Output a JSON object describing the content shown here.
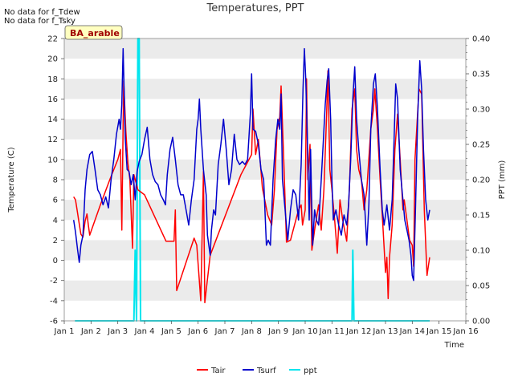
{
  "notes": [
    "No data for f_Tdew",
    "No data for f_Tsky"
  ],
  "badge": "BA_arable",
  "chart_data": {
    "type": "line",
    "title": "Temperatures, PPT",
    "xlabel": "Time",
    "ylabel": "Temperature (C)",
    "y2label": "PPT (mm)",
    "xlim": [
      1,
      16
    ],
    "ylim": [
      -6,
      22
    ],
    "y2lim": [
      0.0,
      0.4
    ],
    "x_tick_labels": [
      "Jan 1",
      "Jan 2",
      "Jan 3",
      "Jan 4",
      "Jan 5",
      "Jan 6",
      "Jan 7",
      "Jan 8",
      "Jan 9",
      "Jan 10",
      "Jan 11",
      "Jan 12",
      "Jan 13",
      "Jan 14",
      "Jan 15",
      "Jan 16"
    ],
    "y_ticks": [
      -6,
      -4,
      -2,
      0,
      2,
      4,
      6,
      8,
      10,
      12,
      14,
      16,
      18,
      20,
      22
    ],
    "y2_ticks": [
      "0.00",
      "0.05",
      "0.10",
      "0.15",
      "0.20",
      "0.25",
      "0.30",
      "0.35",
      "0.40"
    ],
    "grid": "horizontal bands",
    "legend_position": "bottom-center",
    "colors": {
      "Tair": "#ff0000",
      "Tsurf": "#0000cc",
      "ppt": "#00e5ee",
      "band": "#ebebeb"
    },
    "series": [
      {
        "name": "Tair",
        "axis": "left",
        "points": [
          [
            1.35,
            6.3
          ],
          [
            1.42,
            6.0
          ],
          [
            1.48,
            5.0
          ],
          [
            1.55,
            3.8
          ],
          [
            1.62,
            2.6
          ],
          [
            1.7,
            2.3
          ],
          [
            1.78,
            3.9
          ],
          [
            1.85,
            4.6
          ],
          [
            1.9,
            3.5
          ],
          [
            1.95,
            2.5
          ],
          [
            2.35,
            5.5
          ],
          [
            2.7,
            8.0
          ],
          [
            3.0,
            10.0
          ],
          [
            3.1,
            11.0
          ],
          [
            3.15,
            3.0
          ],
          [
            3.22,
            17.8
          ],
          [
            3.3,
            12.8
          ],
          [
            3.38,
            9.6
          ],
          [
            3.45,
            8.0
          ],
          [
            3.55,
            1.2
          ],
          [
            3.6,
            8.5
          ],
          [
            3.75,
            7.0
          ],
          [
            4.0,
            6.5
          ],
          [
            4.8,
            1.9
          ],
          [
            5.1,
            1.9
          ],
          [
            5.15,
            5.0
          ],
          [
            5.2,
            -3.0
          ],
          [
            5.85,
            2.2
          ],
          [
            5.95,
            1.5
          ],
          [
            6.1,
            -4.0
          ],
          [
            6.2,
            8.8
          ],
          [
            6.25,
            -4.2
          ],
          [
            6.45,
            0.5
          ],
          [
            7.6,
            8.5
          ],
          [
            7.8,
            9.5
          ],
          [
            8.0,
            10.5
          ],
          [
            8.05,
            15.0
          ],
          [
            8.15,
            10.5
          ],
          [
            8.25,
            12.0
          ],
          [
            8.4,
            7.2
          ],
          [
            8.6,
            4.5
          ],
          [
            8.75,
            3.5
          ],
          [
            8.85,
            7.0
          ],
          [
            8.95,
            13.0
          ],
          [
            9.05,
            14.2
          ],
          [
            9.1,
            17.3
          ],
          [
            9.2,
            10.0
          ],
          [
            9.3,
            1.8
          ],
          [
            9.45,
            2.0
          ],
          [
            9.6,
            3.5
          ],
          [
            9.75,
            5.0
          ],
          [
            9.85,
            5.5
          ],
          [
            9.9,
            3.5
          ],
          [
            10.0,
            5.0
          ],
          [
            10.05,
            18.0
          ],
          [
            10.1,
            8.0
          ],
          [
            10.18,
            11.5
          ],
          [
            10.25,
            1.0
          ],
          [
            10.35,
            3.0
          ],
          [
            10.5,
            5.5
          ],
          [
            10.6,
            3.0
          ],
          [
            10.7,
            7.0
          ],
          [
            10.8,
            14.5
          ],
          [
            10.85,
            18.8
          ],
          [
            10.92,
            9.0
          ],
          [
            11.0,
            7.0
          ],
          [
            11.1,
            4.0
          ],
          [
            11.2,
            0.7
          ],
          [
            11.3,
            6.0
          ],
          [
            11.4,
            4.0
          ],
          [
            11.55,
            1.9
          ],
          [
            11.65,
            7.0
          ],
          [
            11.75,
            15.0
          ],
          [
            11.85,
            17.0
          ],
          [
            11.92,
            11.0
          ],
          [
            12.0,
            9.0
          ],
          [
            12.1,
            8.0
          ],
          [
            12.2,
            5.0
          ],
          [
            12.3,
            7.0
          ],
          [
            12.45,
            13.0
          ],
          [
            12.55,
            15.0
          ],
          [
            12.6,
            17.0
          ],
          [
            12.7,
            13.0
          ],
          [
            12.8,
            8.0
          ],
          [
            12.9,
            3.5
          ],
          [
            13.0,
            -1.2
          ],
          [
            13.05,
            0.3
          ],
          [
            13.1,
            -3.8
          ],
          [
            13.15,
            0.3
          ],
          [
            13.25,
            3.5
          ],
          [
            13.35,
            11.0
          ],
          [
            13.45,
            14.5
          ],
          [
            13.55,
            10.0
          ],
          [
            13.65,
            5.0
          ],
          [
            13.7,
            6.0
          ],
          [
            13.8,
            4.0
          ],
          [
            13.9,
            2.0
          ],
          [
            14.0,
            1.5
          ],
          [
            14.05,
            -0.6
          ],
          [
            14.1,
            10.0
          ],
          [
            14.25,
            17.0
          ],
          [
            14.35,
            16.5
          ],
          [
            14.45,
            5.0
          ],
          [
            14.55,
            -1.5
          ],
          [
            14.6,
            -0.6
          ],
          [
            14.65,
            0.3
          ]
        ]
      },
      {
        "name": "Tsurf",
        "axis": "left",
        "points": [
          [
            1.35,
            4.0
          ],
          [
            1.42,
            2.8
          ],
          [
            1.5,
            1.0
          ],
          [
            1.56,
            -0.2
          ],
          [
            1.62,
            1.5
          ],
          [
            1.7,
            2.5
          ],
          [
            1.78,
            7.0
          ],
          [
            1.85,
            9.0
          ],
          [
            1.95,
            10.5
          ],
          [
            2.05,
            10.8
          ],
          [
            2.15,
            9.0
          ],
          [
            2.25,
            7.0
          ],
          [
            2.35,
            6.5
          ],
          [
            2.45,
            5.5
          ],
          [
            2.55,
            6.3
          ],
          [
            2.65,
            5.2
          ],
          [
            2.75,
            8.0
          ],
          [
            2.85,
            10.0
          ],
          [
            2.95,
            12.5
          ],
          [
            3.05,
            14.0
          ],
          [
            3.1,
            13.0
          ],
          [
            3.15,
            15.5
          ],
          [
            3.2,
            21.0
          ],
          [
            3.28,
            12.0
          ],
          [
            3.35,
            9.0
          ],
          [
            3.42,
            8.8
          ],
          [
            3.5,
            7.5
          ],
          [
            3.58,
            8.5
          ],
          [
            3.65,
            6.0
          ],
          [
            3.72,
            8.8
          ],
          [
            3.8,
            9.8
          ],
          [
            3.9,
            10.5
          ],
          [
            4.0,
            12.0
          ],
          [
            4.1,
            13.2
          ],
          [
            4.2,
            10.0
          ],
          [
            4.3,
            8.5
          ],
          [
            4.4,
            7.8
          ],
          [
            4.5,
            7.5
          ],
          [
            4.6,
            6.5
          ],
          [
            4.7,
            6.0
          ],
          [
            4.78,
            5.5
          ],
          [
            4.85,
            8.5
          ],
          [
            4.95,
            11.0
          ],
          [
            5.05,
            12.2
          ],
          [
            5.15,
            10.0
          ],
          [
            5.25,
            7.5
          ],
          [
            5.35,
            6.5
          ],
          [
            5.45,
            6.5
          ],
          [
            5.55,
            5.0
          ],
          [
            5.65,
            3.5
          ],
          [
            5.75,
            6.0
          ],
          [
            5.85,
            8.0
          ],
          [
            5.95,
            13.0
          ],
          [
            6.0,
            14.0
          ],
          [
            6.05,
            16.0
          ],
          [
            6.1,
            13.0
          ],
          [
            6.2,
            9.0
          ],
          [
            6.3,
            6.5
          ],
          [
            6.35,
            2.5
          ],
          [
            6.45,
            0.5
          ],
          [
            6.5,
            3.0
          ],
          [
            6.58,
            5.0
          ],
          [
            6.65,
            4.5
          ],
          [
            6.75,
            9.5
          ],
          [
            6.85,
            11.5
          ],
          [
            6.95,
            14.0
          ],
          [
            7.05,
            11.0
          ],
          [
            7.15,
            7.5
          ],
          [
            7.25,
            9.0
          ],
          [
            7.35,
            12.5
          ],
          [
            7.45,
            10.0
          ],
          [
            7.55,
            9.5
          ],
          [
            7.65,
            9.8
          ],
          [
            7.75,
            9.5
          ],
          [
            7.85,
            10.0
          ],
          [
            7.95,
            14.5
          ],
          [
            8.0,
            18.5
          ],
          [
            8.05,
            13.0
          ],
          [
            8.15,
            12.8
          ],
          [
            8.25,
            11.5
          ],
          [
            8.35,
            9.0
          ],
          [
            8.45,
            8.0
          ],
          [
            8.55,
            1.5
          ],
          [
            8.62,
            2.0
          ],
          [
            8.7,
            1.5
          ],
          [
            8.8,
            8.0
          ],
          [
            8.9,
            12.0
          ],
          [
            8.98,
            14.0
          ],
          [
            9.05,
            13.0
          ],
          [
            9.1,
            16.5
          ],
          [
            9.15,
            8.0
          ],
          [
            9.25,
            5.0
          ],
          [
            9.35,
            2.0
          ],
          [
            9.45,
            5.0
          ],
          [
            9.55,
            7.0
          ],
          [
            9.65,
            6.5
          ],
          [
            9.75,
            4.0
          ],
          [
            9.85,
            9.5
          ],
          [
            9.92,
            17.0
          ],
          [
            9.97,
            21.0
          ],
          [
            10.02,
            18.0
          ],
          [
            10.08,
            12.0
          ],
          [
            10.15,
            4.0
          ],
          [
            10.2,
            11.0
          ],
          [
            10.28,
            1.5
          ],
          [
            10.35,
            5.0
          ],
          [
            10.42,
            4.0
          ],
          [
            10.5,
            3.5
          ],
          [
            10.6,
            8.0
          ],
          [
            10.68,
            12.0
          ],
          [
            10.75,
            15.5
          ],
          [
            10.82,
            17.8
          ],
          [
            10.88,
            19.0
          ],
          [
            10.95,
            14.0
          ],
          [
            11.0,
            8.0
          ],
          [
            11.05,
            4.0
          ],
          [
            11.15,
            5.0
          ],
          [
            11.25,
            3.5
          ],
          [
            11.35,
            2.5
          ],
          [
            11.45,
            4.5
          ],
          [
            11.55,
            3.5
          ],
          [
            11.62,
            5.5
          ],
          [
            11.7,
            10.0
          ],
          [
            11.78,
            16.0
          ],
          [
            11.85,
            19.2
          ],
          [
            11.92,
            14.0
          ],
          [
            12.0,
            11.0
          ],
          [
            12.1,
            8.0
          ],
          [
            12.2,
            6.5
          ],
          [
            12.25,
            4.0
          ],
          [
            12.3,
            1.5
          ],
          [
            12.38,
            5.5
          ],
          [
            12.45,
            13.0
          ],
          [
            12.55,
            17.5
          ],
          [
            12.62,
            18.5
          ],
          [
            12.7,
            15.0
          ],
          [
            12.8,
            9.0
          ],
          [
            12.88,
            5.0
          ],
          [
            12.95,
            3.5
          ],
          [
            13.05,
            5.5
          ],
          [
            13.15,
            3.0
          ],
          [
            13.25,
            6.0
          ],
          [
            13.32,
            12.0
          ],
          [
            13.38,
            17.5
          ],
          [
            13.45,
            16.0
          ],
          [
            13.55,
            9.0
          ],
          [
            13.65,
            6.0
          ],
          [
            13.72,
            4.0
          ],
          [
            13.8,
            3.0
          ],
          [
            13.88,
            2.0
          ],
          [
            13.95,
            0.5
          ],
          [
            14.0,
            -1.5
          ],
          [
            14.05,
            -2.0
          ],
          [
            14.12,
            5.0
          ],
          [
            14.2,
            14.0
          ],
          [
            14.28,
            19.8
          ],
          [
            14.35,
            17.0
          ],
          [
            14.42,
            11.0
          ],
          [
            14.5,
            6.0
          ],
          [
            14.58,
            4.0
          ],
          [
            14.65,
            5.0
          ]
        ]
      },
      {
        "name": "ppt",
        "axis": "right",
        "points": [
          [
            1.4,
            0
          ],
          [
            3.6,
            0
          ],
          [
            3.65,
            0.1
          ],
          [
            3.7,
            0
          ],
          [
            3.75,
            0.4
          ],
          [
            3.8,
            0.4
          ],
          [
            3.85,
            0
          ],
          [
            11.75,
            0
          ],
          [
            11.78,
            0.1
          ],
          [
            11.82,
            0
          ],
          [
            14.65,
            0
          ]
        ]
      }
    ]
  }
}
